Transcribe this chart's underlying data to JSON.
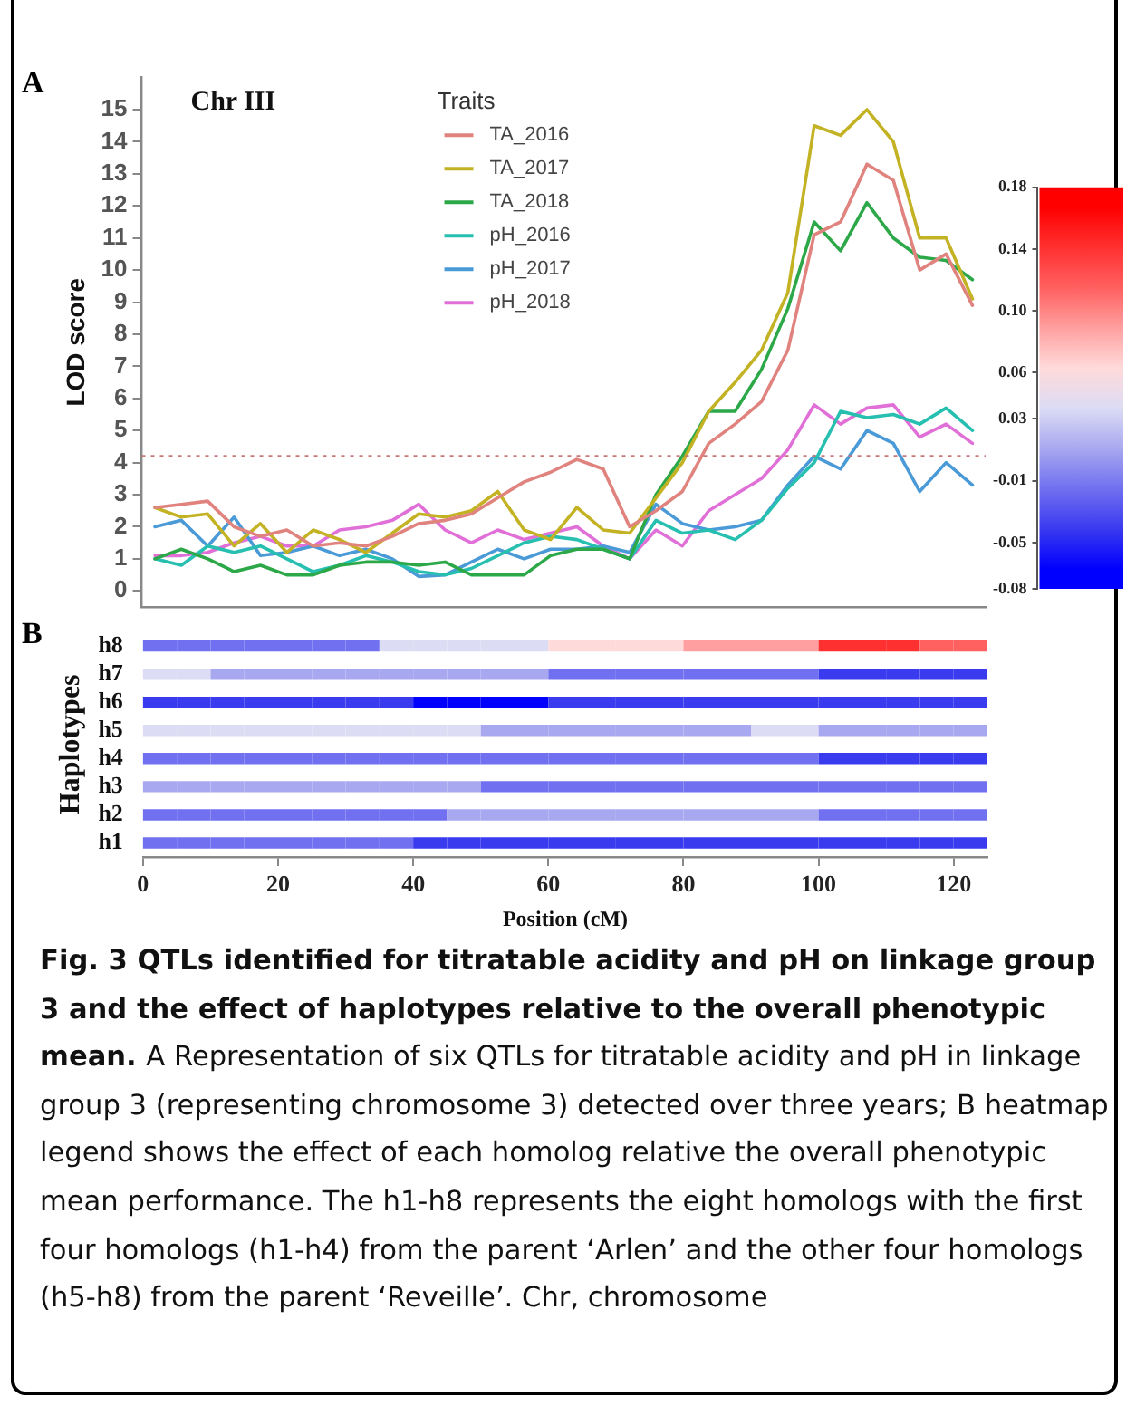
{
  "chart_data": [
    {
      "type": "line",
      "title": "Chr III",
      "ylabel": "LOD score",
      "legend_title": "Traits",
      "annotations": [
        "A"
      ],
      "categories": [
        null,
        null,
        null,
        null,
        null,
        null,
        null,
        null,
        null,
        null,
        null,
        null,
        null,
        null,
        null,
        null,
        null,
        null,
        null,
        null,
        null,
        null,
        null,
        null,
        null,
        null,
        null,
        null,
        null,
        null,
        null,
        null
      ],
      "ylim": [
        -0.5,
        16
      ],
      "yticks": [
        0,
        1,
        2,
        3,
        4,
        5,
        6,
        7,
        8,
        9,
        10,
        11,
        12,
        13,
        14,
        15
      ],
      "tick_labels": "y",
      "grid": false,
      "legend": "top",
      "marker": "none",
      "line_style": "solid",
      "ref_lines": [
        {
          "axis": "y",
          "value": 4.2,
          "color": "#c87878",
          "line_style": "dotted"
        }
      ],
      "series": [
        {
          "name": "TA_2016",
          "color": "#e0837e",
          "values": [
            2.6,
            2.7,
            2.8,
            2.0,
            1.7,
            1.9,
            1.4,
            1.5,
            1.4,
            1.7,
            2.1,
            2.2,
            2.4,
            2.9,
            3.4,
            3.7,
            4.1,
            3.8,
            2.0,
            2.5,
            3.1,
            4.6,
            5.2,
            5.9,
            7.5,
            11.1,
            11.5,
            13.3,
            12.8,
            10.0,
            10.5,
            8.9
          ]
        },
        {
          "name": "TA_2017",
          "color": "#c3b223",
          "values": [
            2.6,
            2.3,
            2.4,
            1.4,
            2.1,
            1.2,
            1.9,
            1.6,
            1.2,
            1.8,
            2.4,
            2.3,
            2.5,
            3.1,
            1.9,
            1.6,
            2.6,
            1.9,
            1.8,
            2.9,
            4.0,
            5.6,
            6.5,
            7.5,
            9.3,
            14.5,
            14.2,
            15.0,
            14.0,
            11.0,
            11.0,
            9.1
          ]
        },
        {
          "name": "TA_2018",
          "color": "#2ca848",
          "values": [
            1.0,
            1.3,
            1.0,
            0.6,
            0.8,
            0.5,
            0.5,
            0.8,
            0.9,
            0.9,
            0.8,
            0.9,
            0.5,
            0.5,
            0.5,
            1.1,
            1.3,
            1.3,
            1.0,
            3.0,
            4.2,
            5.6,
            5.6,
            6.9,
            8.8,
            11.5,
            10.6,
            12.1,
            11.0,
            10.4,
            10.3,
            9.7
          ]
        },
        {
          "name": "pH_2016",
          "color": "#26bfb0",
          "values": [
            1.0,
            0.8,
            1.4,
            1.2,
            1.4,
            1.0,
            0.6,
            0.8,
            1.1,
            0.9,
            0.6,
            0.5,
            0.7,
            1.1,
            1.5,
            1.7,
            1.6,
            1.3,
            1.0,
            2.2,
            1.8,
            1.9,
            1.6,
            2.2,
            3.2,
            4.0,
            5.6,
            5.4,
            5.5,
            5.2,
            5.7,
            5.0
          ]
        },
        {
          "name": "pH_2017",
          "color": "#4a9ad8",
          "values": [
            2.0,
            2.2,
            1.4,
            2.3,
            1.1,
            1.2,
            1.4,
            1.1,
            1.3,
            1.0,
            0.45,
            0.5,
            0.9,
            1.3,
            1.0,
            1.3,
            1.3,
            1.4,
            1.2,
            2.7,
            2.1,
            1.9,
            2.0,
            2.2,
            3.3,
            4.2,
            3.8,
            5.0,
            4.6,
            3.1,
            4.0,
            3.3
          ]
        },
        {
          "name": "pH_2018",
          "color": "#e070d8",
          "values": [
            1.1,
            1.1,
            1.2,
            1.5,
            1.7,
            1.4,
            1.4,
            1.9,
            2.0,
            2.2,
            2.7,
            1.9,
            1.5,
            1.9,
            1.6,
            1.8,
            2.0,
            1.4,
            1.0,
            1.9,
            1.4,
            2.5,
            3.0,
            3.5,
            4.4,
            5.8,
            5.2,
            5.7,
            5.8,
            4.8,
            5.2,
            4.6
          ]
        }
      ]
    },
    {
      "type": "heatmap",
      "xlabel": "Position (cM)",
      "ylabel": "Haplotypes",
      "annotations": [
        "B",
        "Fig. 3 QTLs identified for titratable acidity and pH on linkage group 3 and the effect of haplotypes relative to the overall phenotypic mean.",
        "A Representation of six QTLs for titratable acidity and pH in linkage group 3 (representing chromosome 3) detected over three years; B heatmap legend shows the effect of each homolog relative the overall phenotypic mean performance. The h1-h8 represents the eight homologs with the first four homologs (h1-h4) from the parent ‘Arlen’ and the other four homologs (h5-h8) from the parent ‘Reveille’. Chr, chromosome"
      ],
      "x": [
        2.5,
        7.5,
        12.5,
        17.5,
        22.5,
        27.5,
        32.5,
        37.5,
        42.5,
        47.5,
        52.5,
        57.5,
        62.5,
        67.5,
        72.5,
        77.5,
        82.5,
        87.5,
        92.5,
        97.5,
        102.5,
        107.5,
        112.5,
        117.5,
        122.5
      ],
      "xlim": [
        0,
        125
      ],
      "xticks": [
        0,
        20,
        40,
        60,
        80,
        100,
        120
      ],
      "y_categories": [
        "h8",
        "h7",
        "h6",
        "h5",
        "h4",
        "h3",
        "h2",
        "h1"
      ],
      "clim": [
        -0.08,
        0.18
      ],
      "cticks": [
        0.18,
        0.14,
        {
          "value": 0.1,
          "label": "0.10"
        },
        0.06,
        0.03,
        -0.01,
        -0.05,
        -0.08
      ],
      "cells": [
        [
          -0.015,
          -0.015,
          -0.015,
          -0.015,
          -0.015,
          -0.015,
          -0.015,
          0.037,
          0.037,
          0.037,
          0.037,
          0.037,
          0.063,
          0.063,
          0.063,
          0.063,
          0.089,
          0.089,
          0.089,
          0.089,
          0.141,
          0.141,
          0.141,
          0.115,
          0.115
        ],
        [
          0.037,
          0.037,
          0.011,
          0.011,
          0.011,
          0.011,
          0.011,
          0.011,
          0.011,
          0.011,
          0.011,
          0.011,
          -0.015,
          -0.015,
          -0.015,
          -0.015,
          -0.015,
          -0.015,
          -0.015,
          -0.015,
          -0.041,
          -0.041,
          -0.041,
          -0.041,
          -0.041
        ],
        [
          -0.041,
          -0.041,
          -0.041,
          -0.041,
          -0.041,
          -0.041,
          -0.041,
          -0.041,
          -0.067,
          -0.067,
          -0.067,
          -0.067,
          -0.041,
          -0.041,
          -0.041,
          -0.041,
          -0.041,
          -0.041,
          -0.041,
          -0.041,
          -0.041,
          -0.041,
          -0.041,
          -0.041,
          -0.041
        ],
        [
          0.037,
          0.037,
          0.037,
          0.037,
          0.037,
          0.037,
          0.037,
          0.037,
          0.037,
          0.037,
          0.011,
          0.011,
          0.011,
          0.011,
          0.011,
          0.011,
          0.011,
          0.011,
          0.037,
          0.037,
          0.011,
          0.011,
          0.011,
          0.011,
          0.011
        ],
        [
          -0.015,
          -0.015,
          -0.015,
          -0.015,
          -0.015,
          -0.015,
          -0.015,
          -0.015,
          -0.015,
          -0.015,
          -0.015,
          -0.015,
          -0.015,
          -0.015,
          -0.015,
          -0.015,
          -0.015,
          -0.015,
          -0.015,
          -0.015,
          -0.041,
          -0.041,
          -0.041,
          -0.041,
          -0.041
        ],
        [
          0.011,
          0.011,
          0.011,
          0.011,
          0.011,
          0.011,
          0.011,
          0.011,
          0.011,
          0.011,
          -0.015,
          -0.015,
          -0.015,
          -0.015,
          -0.015,
          -0.015,
          -0.015,
          -0.015,
          -0.015,
          -0.015,
          -0.015,
          -0.015,
          -0.015,
          -0.015,
          -0.015
        ],
        [
          -0.015,
          -0.015,
          -0.015,
          -0.015,
          -0.015,
          -0.015,
          -0.015,
          -0.015,
          -0.015,
          0.011,
          0.011,
          0.011,
          0.011,
          0.011,
          0.011,
          0.011,
          0.011,
          0.011,
          0.011,
          0.011,
          -0.015,
          -0.015,
          -0.015,
          -0.015,
          -0.015
        ],
        [
          -0.015,
          -0.015,
          -0.015,
          -0.015,
          -0.015,
          -0.015,
          -0.015,
          -0.015,
          -0.041,
          -0.041,
          -0.041,
          -0.041,
          -0.041,
          -0.041,
          -0.041,
          -0.041,
          -0.041,
          -0.041,
          -0.041,
          -0.041,
          -0.041,
          -0.041,
          -0.041,
          -0.041,
          -0.041
        ]
      ]
    }
  ]
}
